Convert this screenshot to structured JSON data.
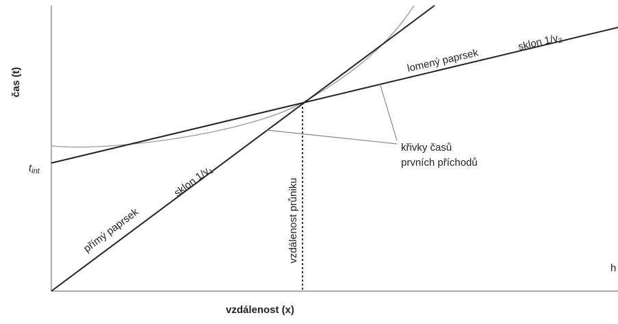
{
  "axes": {
    "y_label": "čas (t)",
    "x_label": "vzdálenost (x)"
  },
  "intercept": {
    "label": "t",
    "subscript": "int"
  },
  "direct_ray": {
    "label": "přímý paprsek",
    "slope": "sklon 1/v",
    "slope_subscript": "1"
  },
  "refracted_ray": {
    "label": "lomený paprsek",
    "slope": "sklon 1/v",
    "slope_subscript": "2"
  },
  "crossover": {
    "label": "vzdálenost průniku"
  },
  "first_arrivals": {
    "line1": "křivky časů",
    "line2": "prvních příchodů"
  },
  "edge_text": "h"
}
